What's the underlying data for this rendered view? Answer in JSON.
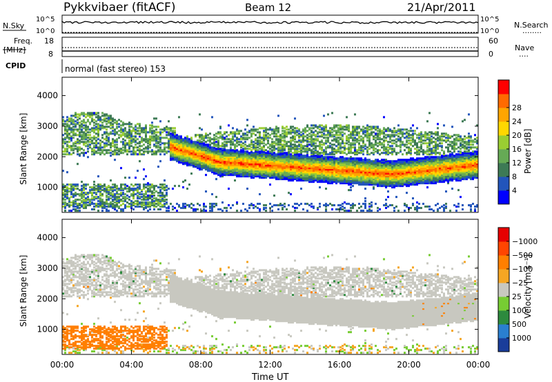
{
  "header": {
    "station": "Pykkvibaer (fitACF)",
    "beam": "Beam 12",
    "date": "21/Apr/2011"
  },
  "noise_panel": {
    "left_label": "N.Sky",
    "left_ticks": [
      "10^5",
      "10^0"
    ],
    "right_ticks": [
      "10^5",
      "10^0"
    ],
    "right_label": "N.Search",
    "right_legend": "........"
  },
  "freq_panel": {
    "left_label_1": "Freq.",
    "left_label_2": "[MHz]",
    "left_ticks": [
      "18",
      "8"
    ],
    "right_ticks": [
      "60",
      "0"
    ],
    "right_label": "Nave",
    "right_legend": "....",
    "cpid_label": "CPID",
    "cpid_text": "normal (fast stereo) 153"
  },
  "chart_data": [
    {
      "type": "heatmap",
      "title": "",
      "xlabel": "",
      "ylabel": "Slant Range [km]",
      "y_ticks": [
        1000,
        2000,
        3000,
        4000
      ],
      "ylim": [
        180,
        4600
      ],
      "xlim_hours": [
        0,
        24
      ],
      "colorbar": {
        "label": "Power [dB]",
        "ticks": [
          "4",
          "8",
          "12",
          "16",
          "20",
          "24",
          "28"
        ],
        "colors": [
          "#0000ff",
          "#2255bb",
          "#3d7a55",
          "#66aa55",
          "#9acd32",
          "#ffd700",
          "#ffa500",
          "#ff6a00",
          "#ff0000"
        ]
      },
      "features": [
        {
          "band": "main echo",
          "start_hour": 6.2,
          "end_hour": 24,
          "range_km": [
            1200,
            2300
          ],
          "peak_db": 28
        },
        {
          "band": "upper diffuse",
          "start_hour": 0,
          "end_hour": 24,
          "range_km": [
            2200,
            3300
          ],
          "peak_db": 16
        },
        {
          "band": "near range",
          "start_hour": 0,
          "end_hour": 6,
          "range_km": [
            300,
            1200
          ],
          "peak_db": 14
        }
      ]
    },
    {
      "type": "heatmap",
      "title": "",
      "xlabel": "Time UT",
      "ylabel": "Slant Range [km]",
      "y_ticks": [
        1000,
        2000,
        3000,
        4000
      ],
      "ylim": [
        180,
        4600
      ],
      "xlim_hours": [
        0,
        24
      ],
      "x_ticks": [
        "00:00",
        "04:00",
        "08:00",
        "12:00",
        "16:00",
        "20:00",
        "00:00"
      ],
      "colorbar": {
        "label": "Velocity [m s⁻¹]",
        "ticks": [
          "1000",
          "500",
          "100",
          "25",
          "−25",
          "−100",
          "−500",
          "−1000"
        ],
        "colors": [
          "#1a3d9a",
          "#2a7fd0",
          "#2d8a3e",
          "#77cc33",
          "#c8c8c0",
          "#f5a623",
          "#ff7f00",
          "#ff4500",
          "#e60000"
        ]
      },
      "features": [
        {
          "band": "main echo",
          "start_hour": 6.2,
          "end_hour": 24,
          "range_km": [
            1200,
            2300
          ],
          "velocity": "~0"
        },
        {
          "band": "upper diffuse",
          "start_hour": 0,
          "end_hour": 24,
          "range_km": [
            2200,
            3300
          ],
          "velocity": "~0"
        },
        {
          "band": "near range",
          "start_hour": 0,
          "end_hour": 6,
          "range_km": [
            300,
            1200
          ],
          "velocity": "-100 to -500"
        }
      ]
    }
  ]
}
